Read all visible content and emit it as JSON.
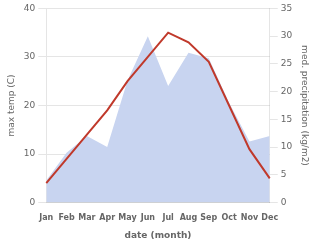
{
  "chart_data": {
    "type": "line",
    "categories": [
      "Jan",
      "Feb",
      "Mar",
      "Apr",
      "May",
      "Jun",
      "Jul",
      "Aug",
      "Sep",
      "Oct",
      "Nov",
      "Dec"
    ],
    "series": [
      {
        "type": "area",
        "color": "#c8d4f0",
        "axis": "y2",
        "values": [
          4,
          9,
          12,
          10,
          22,
          30,
          21,
          27,
          26,
          18,
          11,
          12
        ]
      },
      {
        "type": "line",
        "color": "#c0392b",
        "values": [
          4,
          9,
          14,
          19,
          25,
          30,
          35,
          33,
          29,
          20,
          11,
          5
        ]
      }
    ],
    "xlabel": "date (month)",
    "ylabel": "max temp (C)",
    "y2label": "med. precipitation (kg/m2)",
    "ylim": [
      0,
      40
    ],
    "yticks": [
      0,
      10,
      20,
      30,
      40
    ],
    "y2lim": [
      0,
      35
    ],
    "y2ticks": [
      0,
      5,
      10,
      15,
      20,
      25,
      30,
      35
    ],
    "grid": true
  }
}
